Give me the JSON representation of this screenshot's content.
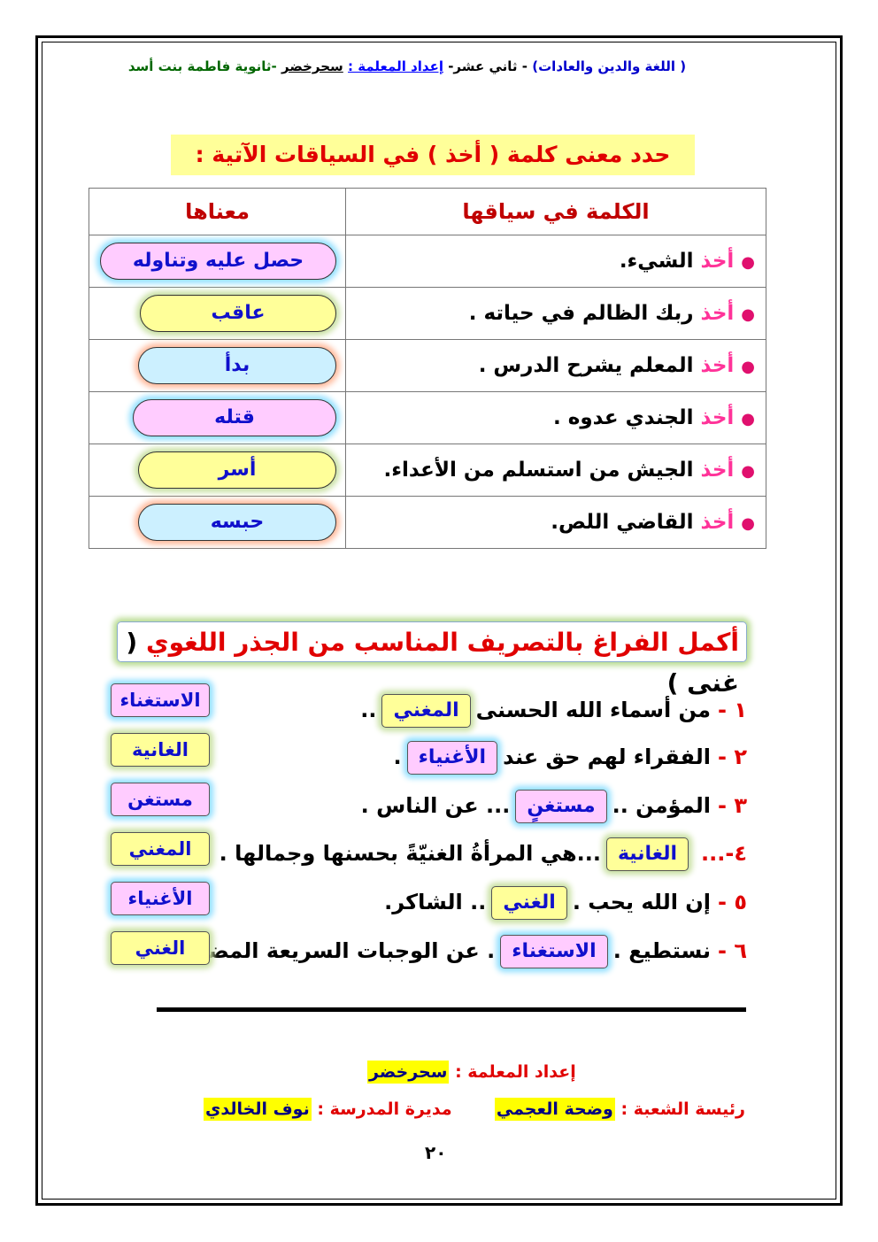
{
  "header": {
    "subject": "( اللغة والدين والعادات)",
    "grade": "- ثاني عشر-",
    "prepared_label": "إعداد المعلمة :",
    "teacher": "سحرخضر",
    "school": "-ثانوية فاطمة بنت أسد"
  },
  "section1": {
    "title": "حدد معنى كلمة ( أخذ ) في السياقات الآتية :",
    "col_context": "الكلمة في سياقها",
    "col_meaning": "معناها",
    "keyword": "أخذ",
    "rows": [
      {
        "context": "الشيء.",
        "meaning": "حصل عليه وتناوله",
        "style": "pink"
      },
      {
        "context": "ربك الظالم في حياته .",
        "meaning": "عاقب",
        "style": "yellow"
      },
      {
        "context": "المعلم يشرح الدرس .",
        "meaning": "بدأ",
        "style": "blue"
      },
      {
        "context": "الجندي عدوه .",
        "meaning": "قتله",
        "style": "pink"
      },
      {
        "context": "الجيش من استسلم من الأعداء.",
        "meaning": "أسر",
        "style": "yellow"
      },
      {
        "context": "القاضي اللص.",
        "meaning": "حبسه",
        "style": "blue"
      }
    ]
  },
  "section2": {
    "title": "أكمل الفراغ بالتصريف المناسب من الجذر اللغوي",
    "root": "( غنى )",
    "items": [
      {
        "num": "١ -",
        "before": "من أسماء الله الحسنى",
        "answer": "المغني",
        "after": "..",
        "style": "yellow"
      },
      {
        "num": "٢ -",
        "before": "الفقراء لهم حق عند",
        "answer": "الأغنياء",
        "after": ".",
        "style": "pink"
      },
      {
        "num": "٣ -",
        "before": "المؤمن ..",
        "answer": "مستغنٍ",
        "after": "... عن الناس .",
        "style": "pink"
      },
      {
        "num": "٤-...",
        "before": "",
        "answer": "الغانية",
        "after": "...هي المرأةُ الغنيّةً بحسنها وجمالها .",
        "style": "yellow"
      },
      {
        "num": "٥ -",
        "before": "إن الله يحب .",
        "answer": "الغني",
        "after": ".. الشاكر.",
        "style": "yellow"
      },
      {
        "num": "٦ -",
        "before": "نستطيع .",
        "answer": "الاستغناء",
        "after": ". عن الوجبات السريعة المضرة.",
        "style": "pink"
      }
    ],
    "word_bank": [
      {
        "word": "الاستغناء",
        "style": "pink"
      },
      {
        "word": "الغانية",
        "style": "yellow"
      },
      {
        "word": "مستغن",
        "style": "pink"
      },
      {
        "word": "المغني",
        "style": "yellow"
      },
      {
        "word": "الأغنياء",
        "style": "pink"
      },
      {
        "word": "الغني",
        "style": "yellow"
      }
    ]
  },
  "footer": {
    "prepared_label": "إعداد المعلمة :",
    "prepared_name": "سحرخضر",
    "head_label": "رئيسة الشعبة :",
    "head_name": "وضحة العجمي",
    "principal_label": "مديرة المدرسة :",
    "principal_name": "نوف الخالدي",
    "page_number": "٢٠"
  }
}
